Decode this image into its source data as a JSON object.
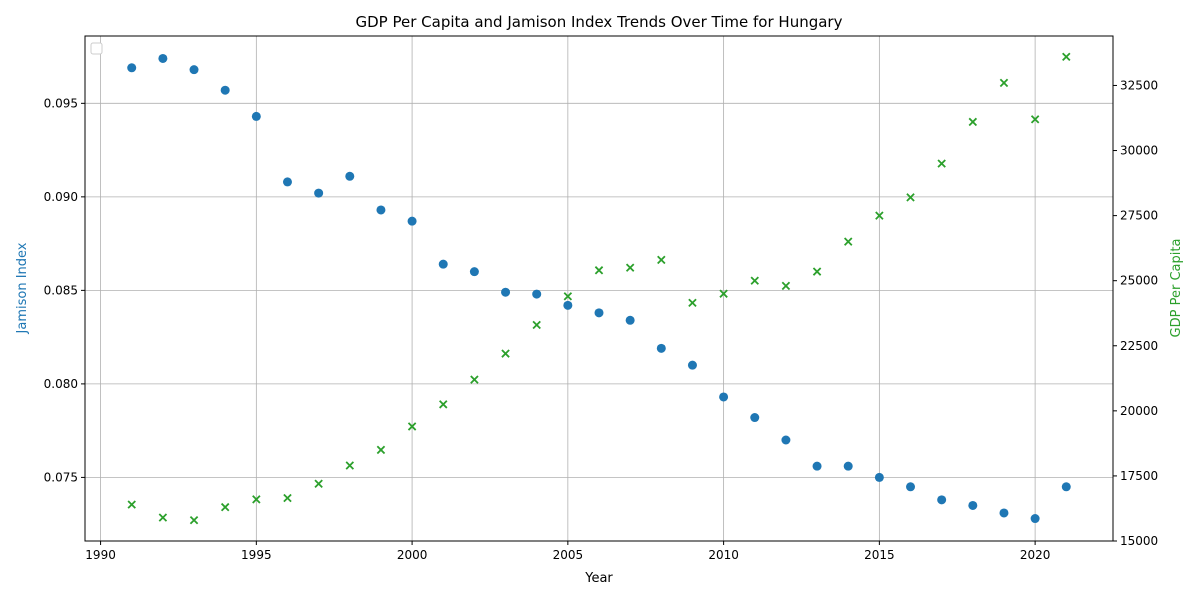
{
  "chart_data": {
    "type": "scatter",
    "title": "GDP Per Capita and Jamison Index Trends Over Time for Hungary",
    "xlabel": "Year",
    "ylabel_left": "Jamison Index",
    "ylabel_right": "GDP Per Capita",
    "xlim": [
      1989.5,
      2022.5
    ],
    "ylim_left": [
      0.0716,
      0.0986
    ],
    "ylim_right": [
      15000,
      34400
    ],
    "x_ticks": [
      1990,
      1995,
      2000,
      2005,
      2010,
      2015,
      2020
    ],
    "y_left_ticks": [
      "0.075",
      "0.080",
      "0.085",
      "0.090",
      "0.095"
    ],
    "y_left_tick_values": [
      0.075,
      0.08,
      0.085,
      0.09,
      0.095
    ],
    "y_right_ticks": [
      "15000",
      "17500",
      "20000",
      "22500",
      "25000",
      "27500",
      "30000",
      "32500"
    ],
    "y_right_tick_values": [
      15000,
      17500,
      20000,
      22500,
      25000,
      27500,
      30000,
      32500
    ],
    "grid": true,
    "legend_location": "top-left",
    "x": [
      1991,
      1992,
      1993,
      1994,
      1995,
      1996,
      1997,
      1998,
      1999,
      2000,
      2001,
      2002,
      2003,
      2004,
      2005,
      2006,
      2007,
      2008,
      2009,
      2010,
      2011,
      2012,
      2013,
      2014,
      2015,
      2016,
      2017,
      2018,
      2019,
      2020,
      2021
    ],
    "series": [
      {
        "axis": "left",
        "marker": "circle",
        "color": "#1f77b4",
        "values": [
          0.0969,
          0.0974,
          0.0968,
          0.0957,
          0.0943,
          0.0908,
          0.0902,
          0.0911,
          0.0893,
          0.0887,
          0.0864,
          0.086,
          0.0849,
          0.0848,
          0.0842,
          0.0838,
          0.0834,
          0.0819,
          0.081,
          0.0793,
          0.0782,
          0.077,
          0.0756,
          0.0756,
          0.075,
          0.0745,
          0.0738,
          0.0735,
          0.0731,
          0.0728,
          0.0745
        ]
      },
      {
        "axis": "right",
        "marker": "x",
        "color": "#2ca02c",
        "values": [
          16400,
          15900,
          15800,
          16300,
          16600,
          16650,
          17200,
          17900,
          18500,
          19400,
          20250,
          21200,
          22200,
          23300,
          24400,
          25400,
          25500,
          25800,
          24150,
          24500,
          25000,
          24800,
          25350,
          26500,
          27500,
          28200,
          29500,
          31100,
          32600,
          31200,
          33600
        ]
      }
    ]
  }
}
